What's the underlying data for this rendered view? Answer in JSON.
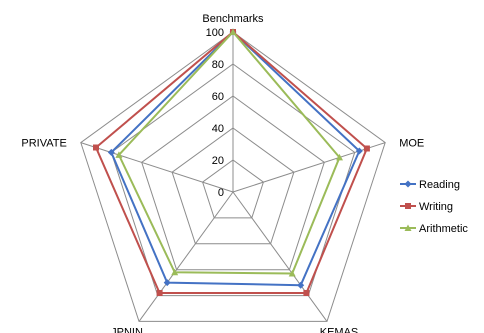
{
  "chart_data": {
    "type": "radar",
    "categories": [
      "Benchmarks",
      "MOE",
      "KEMAS",
      "JPNIN",
      "PRIVATE"
    ],
    "rmax": 100,
    "ticks": [
      0,
      20,
      40,
      60,
      80,
      100
    ],
    "tick_labels": [
      "0",
      "20",
      "40",
      "60",
      "80",
      "100"
    ],
    "grid": true,
    "legend_position": "right",
    "series": [
      {
        "name": "Reading",
        "color": "#4472C4",
        "marker": "diamond",
        "values": [
          100,
          83,
          72,
          70,
          80
        ]
      },
      {
        "name": "Writing",
        "color": "#C0504D",
        "marker": "square",
        "values": [
          100,
          88,
          78,
          78,
          90
        ]
      },
      {
        "name": "Arithmetic",
        "color": "#9BBB59",
        "marker": "triangle",
        "values": [
          100,
          70,
          63,
          62,
          75
        ]
      }
    ]
  }
}
